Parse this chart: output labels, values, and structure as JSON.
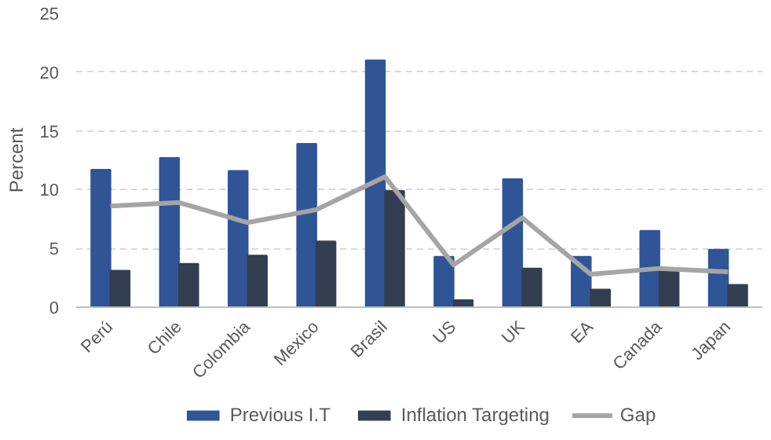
{
  "chart_data": {
    "type": "bar",
    "ylabel": "Percent",
    "categories": [
      "Perú",
      "Chile",
      "Colombia",
      "Mexico",
      "Brasil",
      "US",
      "UK",
      "EA",
      "Canada",
      "Japan"
    ],
    "series": [
      {
        "name": "Previous I.T",
        "color": "#2f5597",
        "values": [
          11.7,
          12.7,
          11.6,
          13.9,
          21.0,
          4.3,
          10.9,
          4.3,
          6.5,
          4.9
        ]
      },
      {
        "name": "Inflation Targeting",
        "color": "#333f50",
        "values": [
          3.1,
          3.7,
          4.4,
          5.6,
          9.9,
          0.6,
          3.3,
          1.5,
          3.1,
          1.9
        ]
      },
      {
        "name": "Gap",
        "type": "line",
        "color": "#a5a5a5",
        "values": [
          8.6,
          8.9,
          7.2,
          8.3,
          11.1,
          3.6,
          7.6,
          2.8,
          3.3,
          3.0
        ]
      }
    ],
    "ylim": [
      0,
      25
    ],
    "yticks": [
      0,
      5,
      10,
      15,
      20,
      25
    ],
    "grid": "y",
    "legend": "bottom",
    "marker": "none",
    "line_style": "solid"
  }
}
